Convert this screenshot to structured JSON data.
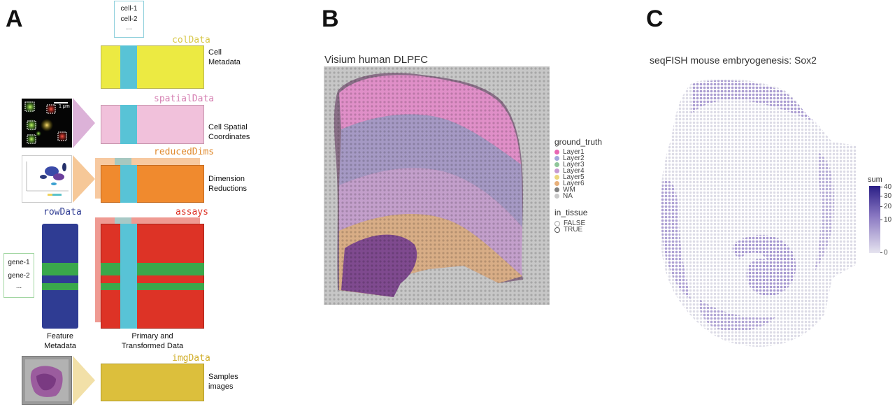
{
  "panel_a": {
    "letter": "A",
    "cells_box": [
      "cell-1",
      "cell-2",
      "..."
    ],
    "genes_box": [
      "gene-1",
      "gene-2",
      "..."
    ],
    "slots": {
      "colData": "colData",
      "spatialData": "spatialData",
      "reducedDims": "reducedDims",
      "rowData": "rowData",
      "assays": "assays",
      "imgData": "imgData"
    },
    "inset_scale": "1 μm",
    "labels": {
      "cell_metadata": "Cell\nMetadata",
      "cell_spatial": "Cell Spatial\nCoordinates",
      "dim_red": "Dimension\nReductions",
      "feature_meta": "Feature\nMetadata",
      "primary": "Primary and\nTransformed Data",
      "samples": "Samples\nimages"
    },
    "colors": {
      "colData": "#ecea42",
      "spatialData": "#f1c1db",
      "reducedDims": "#f08a2e",
      "assays": "#dd3326",
      "rowData": "#2f3c93",
      "imgData": "#dcbf3c",
      "cell_stripe": "#58c3d6",
      "gene_stripe": "#3aa84b"
    }
  },
  "panel_b": {
    "letter": "B",
    "title": "Visium human DLPFC",
    "legend_title": "ground_truth",
    "legend": [
      {
        "label": "Layer1",
        "color": "#e866b3"
      },
      {
        "label": "Layer2",
        "color": "#a3a8dc"
      },
      {
        "label": "Layer3",
        "color": "#8fc69a"
      },
      {
        "label": "Layer4",
        "color": "#c79ad2"
      },
      {
        "label": "Layer5",
        "color": "#ecd77c"
      },
      {
        "label": "Layer6",
        "color": "#e8b07a"
      },
      {
        "label": "WM",
        "color": "#808080"
      },
      {
        "label": "NA",
        "color": "#c9c9c9"
      }
    ],
    "tissue_title": "in_tissue",
    "tissue_legend": [
      "FALSE",
      "TRUE"
    ]
  },
  "panel_c": {
    "letter": "C",
    "title": "seqFISH mouse embryogenesis: Sox2",
    "colorbar_title": "sum",
    "colorbar_ticks": [
      "40",
      "30",
      "20",
      "10",
      "0"
    ],
    "colorbar_tick_values": [
      40,
      30,
      20,
      10,
      0
    ],
    "colorbar_max": 42,
    "colorbar_low": "#e6e4ef",
    "colorbar_high": "#2a1e86"
  }
}
